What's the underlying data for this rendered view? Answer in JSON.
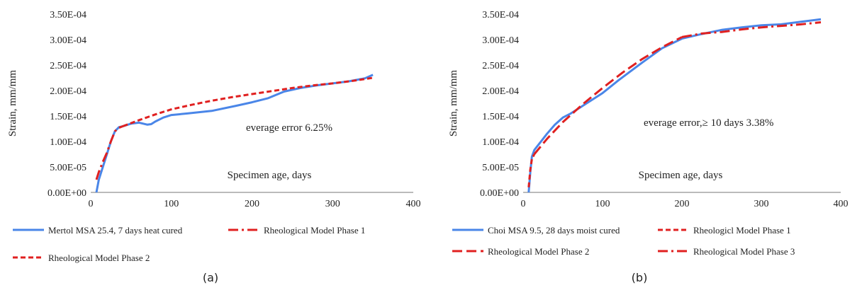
{
  "chart_data": [
    {
      "type": "line",
      "panel_label": "(a)",
      "ylabel": "Strain,  mm/mm",
      "xlabel": "Specimen  age, days",
      "annotation": "everage error 6.25%",
      "xlim": [
        0,
        400
      ],
      "ylim": [
        0,
        0.00035
      ],
      "x_ticks": [
        "0",
        "100",
        "200",
        "300",
        "400"
      ],
      "y_ticks": [
        "0.00E+00",
        "5.00E-05",
        "1.00E-04",
        "1.50E-04",
        "2.00E-04",
        "2.50E-04",
        "3.00E-04",
        "3.50E-04"
      ],
      "series": [
        {
          "name": "Mertol MSA 25.4, 7 days heat cured",
          "color": "#4a86e8",
          "style": "solid",
          "x": [
            7,
            10,
            15,
            20,
            25,
            30,
            35,
            40,
            50,
            60,
            70,
            75,
            80,
            90,
            100,
            120,
            150,
            180,
            200,
            220,
            240,
            260,
            280,
            300,
            320,
            340,
            350
          ],
          "y": [
            0,
            2.5e-05,
            5e-05,
            7.5e-05,
            0.0001,
            0.00012,
            0.000128,
            0.00013,
            0.000135,
            0.000137,
            0.000133,
            0.000134,
            0.000139,
            0.000147,
            0.000152,
            0.000155,
            0.00016,
            0.00017,
            0.000177,
            0.000185,
            0.000198,
            0.000205,
            0.00021,
            0.000214,
            0.000218,
            0.000224,
            0.000231
          ]
        },
        {
          "name": "Rheological Model Phase 1",
          "color": "#e02020",
          "style": "dashdot",
          "x": [
            7,
            10,
            15,
            20,
            25,
            30,
            35,
            40
          ],
          "y": [
            2.5e-05,
            4e-05,
            6e-05,
            7.8e-05,
            0.0001,
            0.00012,
            0.000127,
            0.00013
          ]
        },
        {
          "name": "Rheological Model Phase 2",
          "color": "#e02020",
          "style": "dash",
          "x": [
            40,
            60,
            80,
            100,
            125,
            150,
            175,
            200,
            225,
            250,
            275,
            300,
            325,
            350
          ],
          "y": [
            0.00013,
            0.000142,
            0.000153,
            0.000163,
            0.000172,
            0.00018,
            0.000187,
            0.000193,
            0.000199,
            0.000205,
            0.00021,
            0.000214,
            0.000219,
            0.000225
          ]
        }
      ]
    },
    {
      "type": "line",
      "panel_label": "(b)",
      "ylabel": "Strain,  mm/mm",
      "xlabel": "Specimen  age, days",
      "annotation": "everage error,≥ 10 days 3.38%",
      "xlim": [
        0,
        400
      ],
      "ylim": [
        0,
        0.00035
      ],
      "x_ticks": [
        "0",
        "100",
        "200",
        "300",
        "400"
      ],
      "y_ticks": [
        "0.00E+00",
        "5.00E-05",
        "1.00E-04",
        "1.50E-04",
        "2.00E-04",
        "2.50E-04",
        "3.00E-04",
        "3.50E-04"
      ],
      "series": [
        {
          "name": "Choi MSA 9.5, 28 days moist cured",
          "color": "#4a86e8",
          "style": "solid",
          "x": [
            7,
            9,
            11,
            14,
            20,
            30,
            40,
            50,
            60,
            70,
            80,
            100,
            120,
            150,
            175,
            200,
            225,
            250,
            275,
            300,
            325,
            350,
            375
          ],
          "y": [
            0,
            4e-05,
            7e-05,
            8.3e-05,
            9.5e-05,
            0.000115,
            0.000133,
            0.000147,
            0.000155,
            0.000165,
            0.000175,
            0.000195,
            0.00022,
            0.000255,
            0.000283,
            0.000302,
            0.000311,
            0.000319,
            0.000324,
            0.000328,
            0.00033,
            0.000335,
            0.00034
          ]
        },
        {
          "name": "Rheologicl Model Phase 1",
          "color": "#e02020",
          "style": "dash",
          "x": [
            7,
            9,
            11,
            14
          ],
          "y": [
            1e-05,
            4.5e-05,
            6.5e-05,
            7.5e-05
          ]
        },
        {
          "name": "Rheological Model Phase 2",
          "color": "#e02020",
          "style": "longdash",
          "x": [
            14,
            30,
            50,
            75,
            100,
            125,
            150,
            175,
            200
          ],
          "y": [
            7.5e-05,
            0.000105,
            0.000138,
            0.000173,
            0.000205,
            0.000235,
            0.000262,
            0.000285,
            0.000305
          ]
        },
        {
          "name": "Rheological Model Phase 3",
          "color": "#e02020",
          "style": "dashdot",
          "x": [
            200,
            225,
            250,
            275,
            300,
            325,
            350,
            375
          ],
          "y": [
            0.000305,
            0.000312,
            0.000315,
            0.00032,
            0.000324,
            0.000327,
            0.00033,
            0.000334
          ]
        }
      ]
    }
  ]
}
